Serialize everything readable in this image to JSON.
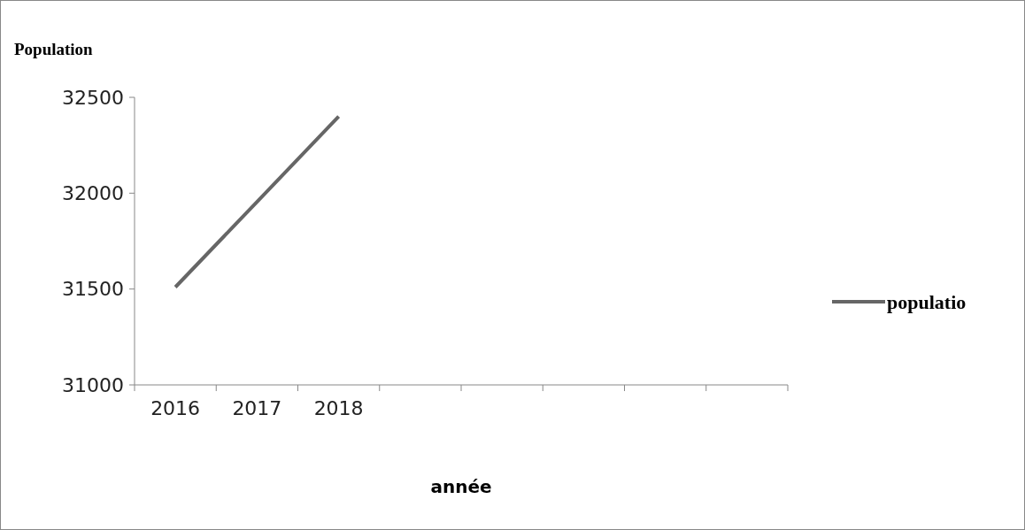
{
  "chart_data": {
    "type": "line",
    "ylabel": "Population",
    "xlabel": "année",
    "categories": [
      "2016",
      "2017",
      "2018",
      null,
      null,
      null,
      null,
      null
    ],
    "series": [
      {
        "name": "populatio",
        "color": "#666666",
        "values": [
          31510,
          31955,
          32400,
          null,
          null,
          null,
          null,
          null
        ]
      }
    ],
    "ylim": [
      31000,
      32500
    ],
    "yticks": [
      31000,
      31500,
      32000,
      32500
    ],
    "grid": false,
    "legend": "right",
    "marker": "none",
    "line_style": "solid"
  }
}
